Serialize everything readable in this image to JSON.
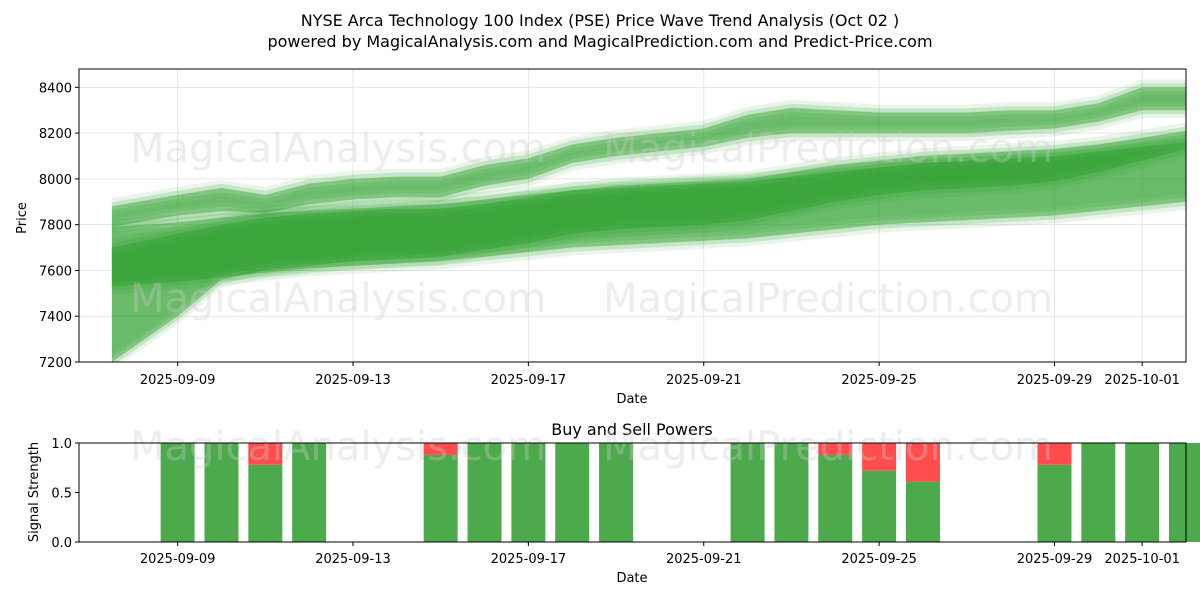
{
  "title_line1": "NYSE Arca Technology 100 Index (PSE) Price Wave Trend Analysis (Oct 02 )",
  "title_line2": "powered by MagicalAnalysis.com and MagicalPrediction.com and Predict-Price.com",
  "watermarks": [
    "MagicalAnalysis.com",
    "MagicalPrediction.com"
  ],
  "colors": {
    "band": "#2ca02c",
    "buy": "#4caa4c",
    "sell": "#ff4c4c",
    "grid": "#e6e6e6"
  },
  "chart_data": [
    {
      "type": "area",
      "title": "",
      "xlabel": "Date",
      "ylabel": "Price",
      "ylim": [
        7200,
        8480
      ],
      "y_ticks": [
        7200,
        7400,
        7600,
        7800,
        8000,
        8200,
        8400
      ],
      "x_ticks": [
        "2025-09-09",
        "2025-09-13",
        "2025-09-17",
        "2025-09-21",
        "2025-09-25",
        "2025-09-29",
        "2025-10-01"
      ],
      "x_range_days": [
        -2.25,
        23.0
      ],
      "x_tick_days": [
        0,
        4,
        8,
        12,
        16,
        20,
        22
      ],
      "grid": true,
      "x_days": [
        -1.5,
        0,
        1,
        2,
        3,
        4,
        5,
        6,
        7,
        8,
        9,
        10,
        11,
        12,
        13,
        14,
        15,
        16,
        17,
        18,
        19,
        20,
        21,
        22,
        23
      ],
      "series": [
        {
          "name": "wide-lower",
          "upper": [
            7790,
            7810,
            7830,
            7850,
            7860,
            7870,
            7880,
            7890,
            7910,
            7930,
            7950,
            7960,
            7970,
            7980,
            7990,
            8010,
            8030,
            8050,
            8070,
            8080,
            8090,
            8100,
            8120,
            8140,
            8160
          ],
          "lower": [
            7530,
            7550,
            7570,
            7590,
            7610,
            7620,
            7630,
            7640,
            7660,
            7680,
            7700,
            7710,
            7720,
            7730,
            7740,
            7760,
            7780,
            7800,
            7810,
            7820,
            7830,
            7840,
            7860,
            7880,
            7900
          ]
        },
        {
          "name": "core-lower",
          "upper": [
            7700,
            7760,
            7800,
            7830,
            7850,
            7860,
            7870,
            7870,
            7890,
            7920,
            7950,
            7970,
            7980,
            7990,
            8000,
            8030,
            8060,
            8080,
            8100,
            8110,
            8120,
            8130,
            8150,
            8180,
            8210
          ],
          "lower": [
            7200,
            7400,
            7560,
            7600,
            7620,
            7640,
            7650,
            7660,
            7690,
            7720,
            7760,
            7780,
            7790,
            7800,
            7820,
            7860,
            7900,
            7930,
            7950,
            7960,
            7970,
            7990,
            8030,
            8080,
            8130
          ]
        },
        {
          "name": "upper-wave",
          "upper": [
            7880,
            7930,
            7960,
            7930,
            7980,
            8000,
            8010,
            8010,
            8060,
            8090,
            8150,
            8180,
            8200,
            8220,
            8280,
            8310,
            8300,
            8290,
            8290,
            8290,
            8300,
            8300,
            8330,
            8400,
            8400
          ],
          "lower": [
            7790,
            7840,
            7860,
            7850,
            7890,
            7910,
            7920,
            7920,
            7970,
            8000,
            8070,
            8100,
            8120,
            8140,
            8180,
            8200,
            8200,
            8200,
            8200,
            8200,
            8210,
            8220,
            8250,
            8300,
            8300
          ]
        }
      ]
    },
    {
      "type": "bar",
      "title": "Buy and Sell Powers",
      "xlabel": "Date",
      "ylabel": "Signal Strength",
      "ylim": [
        0,
        1.0
      ],
      "y_ticks": [
        "0.0",
        "0.5",
        "1.0"
      ],
      "x_ticks": [
        "2025-09-09",
        "2025-09-13",
        "2025-09-17",
        "2025-09-21",
        "2025-09-25",
        "2025-09-29",
        "2025-10-01"
      ],
      "days": [
        0,
        1,
        2,
        3,
        6,
        7,
        8,
        9,
        10,
        13,
        14,
        15,
        16,
        17,
        20,
        21,
        22,
        23
      ],
      "buy": [
        1.0,
        1.0,
        0.78,
        1.0,
        0.88,
        1.0,
        1.0,
        1.0,
        1.0,
        1.0,
        1.0,
        0.88,
        0.72,
        0.61,
        0.78,
        1.0,
        1.0,
        1.0
      ],
      "sell": [
        0.0,
        0.0,
        0.22,
        0.0,
        0.12,
        0.0,
        0.0,
        0.0,
        0.0,
        0.0,
        0.0,
        0.12,
        0.28,
        0.39,
        0.22,
        0.0,
        0.0,
        0.0
      ]
    }
  ]
}
